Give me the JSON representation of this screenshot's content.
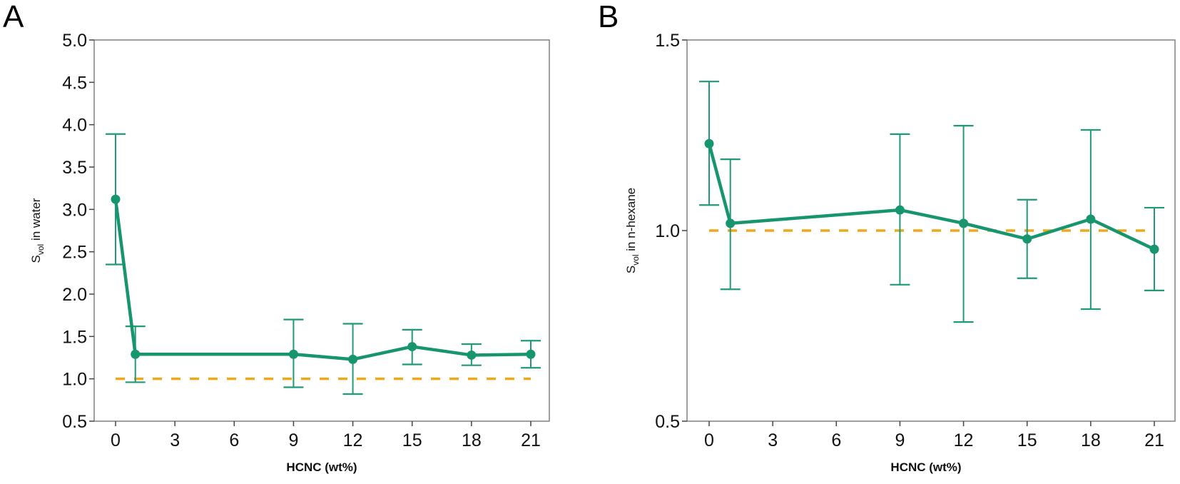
{
  "figure": {
    "panels": [
      "A",
      "B"
    ]
  },
  "colors": {
    "series": "#17956e",
    "errorbar": "#1f9a78",
    "reference": "#f0a818",
    "axis": "#808080"
  },
  "chart_data": [
    {
      "type": "line",
      "panel_label": "A",
      "title": "",
      "xlabel": "HCNC (wt%)",
      "ylabel_main": "S",
      "ylabel_sub": "vol",
      "ylabel_rest": " in water",
      "xlim": [
        -1.1,
        22.1
      ],
      "ylim": [
        0.5,
        5.0
      ],
      "xticks": [
        0,
        3,
        6,
        9,
        12,
        15,
        18,
        21
      ],
      "yticks": [
        0.5,
        1.0,
        1.5,
        2.0,
        2.5,
        3.0,
        3.5,
        4.0,
        4.5,
        5.0
      ],
      "ytick_labels": [
        "0.5",
        "1.0",
        "1.5",
        "2.0",
        "2.5",
        "3.0",
        "3.5",
        "4.0",
        "4.5",
        "5.0"
      ],
      "grid": false,
      "series": [
        {
          "name": "Svol in water",
          "x": [
            0,
            1,
            9,
            12,
            15,
            18,
            21
          ],
          "y": [
            3.12,
            1.29,
            1.29,
            1.23,
            1.38,
            1.28,
            1.29
          ],
          "err_upper": [
            3.89,
            1.62,
            1.7,
            1.65,
            1.58,
            1.41,
            1.45
          ],
          "err_lower": [
            2.35,
            0.96,
            0.9,
            0.82,
            1.17,
            1.16,
            1.13
          ]
        }
      ],
      "reference_line": {
        "y": 1.0,
        "x_from": 0,
        "x_to": 21,
        "style": "dashed"
      }
    },
    {
      "type": "line",
      "panel_label": "B",
      "title": "",
      "xlabel": "HCNC (wt%)",
      "ylabel_main": "S",
      "ylabel_sub": "vol",
      "ylabel_rest": " in n-hexane",
      "xlim": [
        -1.0,
        22.0
      ],
      "ylim": [
        0.5,
        1.5
      ],
      "xticks": [
        0,
        3,
        6,
        9,
        12,
        15,
        18,
        21
      ],
      "yticks": [
        0.5,
        1.0,
        1.5
      ],
      "ytick_labels": [
        "0.5",
        "1.0",
        "1.5"
      ],
      "grid": false,
      "series": [
        {
          "name": "Svol in n-hexane",
          "x": [
            0,
            1,
            9,
            12,
            15,
            18,
            21
          ],
          "y": [
            1.228,
            1.019,
            1.054,
            1.019,
            0.978,
            1.03,
            0.951
          ],
          "err_upper": [
            1.391,
            1.187,
            1.253,
            1.275,
            1.081,
            1.264,
            1.06
          ],
          "err_lower": [
            1.067,
            0.846,
            0.858,
            0.76,
            0.875,
            0.794,
            0.843
          ]
        }
      ],
      "reference_line": {
        "y": 1.0,
        "x_from": 0,
        "x_to": 21,
        "style": "dashed"
      }
    }
  ]
}
